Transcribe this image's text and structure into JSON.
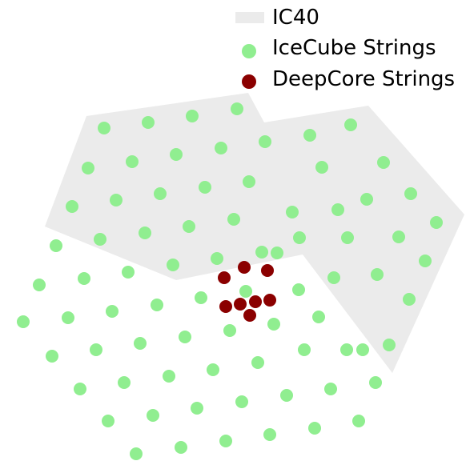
{
  "chart_data": {
    "type": "scatter",
    "title": "",
    "xlabel": "",
    "ylabel": "",
    "grid": false,
    "axes_visible": false,
    "xlim": [
      -10,
      577
    ],
    "ylim": [
      -576,
      0
    ],
    "legend": {
      "placement": "top-right",
      "entries": [
        "IC40",
        "IceCube Strings",
        "DeepCore Strings"
      ]
    },
    "region": {
      "name": "IC40",
      "color": "#ebebeb",
      "outline": [
        [
          98,
          -145
        ],
        [
          300,
          -116
        ],
        [
          320,
          -153
        ],
        [
          450,
          -132
        ],
        [
          570,
          -268
        ],
        [
          480,
          -466
        ],
        [
          368,
          -318
        ],
        [
          210,
          -350
        ],
        [
          46,
          -283
        ]
      ]
    },
    "series": [
      {
        "name": "IceCube Strings",
        "color": "#90ee90",
        "x": [
          120,
          175,
          230,
          286,
          100,
          155,
          210,
          266,
          321,
          377,
          428,
          80,
          135,
          190,
          246,
          301,
          355,
          412,
          469,
          60,
          115,
          171,
          226,
          282,
          336,
          392,
          448,
          503,
          39,
          95,
          150,
          206,
          261,
          317,
          364,
          424,
          488,
          535,
          19,
          75,
          130,
          186,
          241,
          297,
          363,
          407,
          461,
          521,
          55,
          110,
          165,
          221,
          277,
          332,
          388,
          443,
          501,
          90,
          145,
          201,
          256,
          312,
          370,
          423,
          476,
          125,
          181,
          236,
          292,
          348,
          403,
          459,
          160,
          216,
          272,
          327,
          383,
          438
        ],
        "y": [
          -160,
          -153,
          -145,
          -136,
          -210,
          -202,
          -193,
          -185,
          -177,
          -169,
          -156,
          -258,
          -250,
          -242,
          -234,
          -227,
          -265,
          -262,
          -203,
          -307,
          -299,
          -291,
          -283,
          -274,
          -316,
          -209,
          -249,
          -242,
          -356,
          -348,
          -340,
          -331,
          -323,
          -315,
          -297,
          -297,
          -296,
          -278,
          -402,
          -397,
          -389,
          -381,
          -372,
          -364,
          -362,
          -347,
          -343,
          -326,
          -445,
          -437,
          -429,
          -421,
          -413,
          -405,
          -396,
          -437,
          -374,
          -486,
          -478,
          -470,
          -462,
          -453,
          -437,
          -437,
          -431,
          -526,
          -519,
          -510,
          -502,
          -494,
          -486,
          -478,
          -567,
          -559,
          -551,
          -543,
          -535,
          -526
        ]
      },
      {
        "name": "DeepCore Strings",
        "color": "#8b0000",
        "x": [
          295,
          324,
          270,
          272,
          290,
          309,
          327,
          302
        ],
        "y": [
          -334,
          -338,
          -347,
          -383,
          -380,
          -377,
          -375,
          -394
        ]
      }
    ]
  }
}
